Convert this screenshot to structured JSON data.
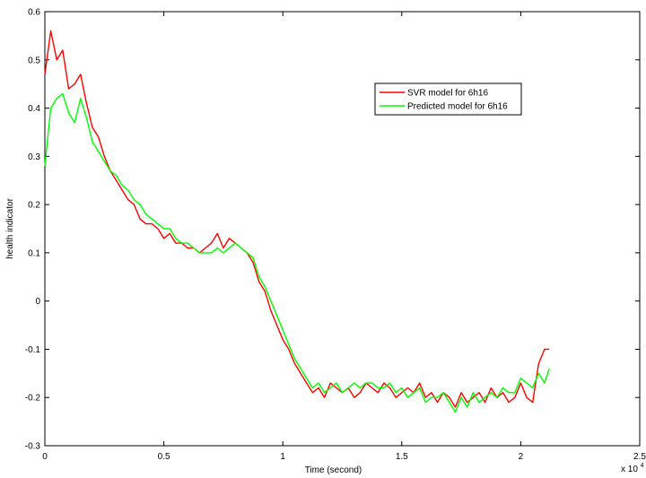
{
  "chart_data": {
    "type": "line",
    "xlabel": "Time (second)",
    "ylabel": "health indicator",
    "x_multiplier_label": "x 10",
    "x_multiplier_exp": "4",
    "xlim": [
      0,
      2.5
    ],
    "ylim": [
      -0.3,
      0.6
    ],
    "xticks": [
      0,
      0.5,
      1,
      1.5,
      2,
      2.5
    ],
    "xtick_labels": [
      "0",
      "0.5",
      "1",
      "1.5",
      "2",
      "2.5"
    ],
    "yticks": [
      -0.3,
      -0.2,
      -0.1,
      0,
      0.1,
      0.2,
      0.3,
      0.4,
      0.5,
      0.6
    ],
    "ytick_labels": [
      "-0.3",
      "-0.2",
      "-0.1",
      "0",
      "0.1",
      "0.2",
      "0.3",
      "0.4",
      "0.5",
      "0.6"
    ],
    "grid": false,
    "legend_position": "top-right",
    "series": [
      {
        "name": "SVR model for 6h16",
        "color": "#ff0000",
        "x": [
          0,
          0.025,
          0.05,
          0.075,
          0.1,
          0.125,
          0.15,
          0.175,
          0.2,
          0.225,
          0.25,
          0.275,
          0.3,
          0.325,
          0.35,
          0.375,
          0.4,
          0.425,
          0.45,
          0.475,
          0.5,
          0.525,
          0.55,
          0.575,
          0.6,
          0.625,
          0.65,
          0.675,
          0.7,
          0.725,
          0.75,
          0.775,
          0.8,
          0.825,
          0.85,
          0.875,
          0.9,
          0.925,
          0.95,
          0.975,
          1.0,
          1.025,
          1.05,
          1.075,
          1.1,
          1.125,
          1.15,
          1.175,
          1.2,
          1.225,
          1.25,
          1.275,
          1.3,
          1.325,
          1.35,
          1.375,
          1.4,
          1.425,
          1.45,
          1.475,
          1.5,
          1.525,
          1.55,
          1.575,
          1.6,
          1.625,
          1.65,
          1.675,
          1.7,
          1.725,
          1.75,
          1.775,
          1.8,
          1.825,
          1.85,
          1.875,
          1.9,
          1.925,
          1.95,
          1.975,
          2.0,
          2.025,
          2.05,
          2.075,
          2.1,
          2.12
        ],
        "values": [
          0.47,
          0.56,
          0.5,
          0.52,
          0.44,
          0.45,
          0.47,
          0.41,
          0.36,
          0.34,
          0.3,
          0.27,
          0.25,
          0.23,
          0.21,
          0.2,
          0.17,
          0.16,
          0.16,
          0.15,
          0.13,
          0.14,
          0.12,
          0.12,
          0.11,
          0.11,
          0.1,
          0.11,
          0.12,
          0.14,
          0.11,
          0.13,
          0.12,
          0.11,
          0.1,
          0.08,
          0.04,
          0.02,
          -0.02,
          -0.05,
          -0.08,
          -0.1,
          -0.13,
          -0.15,
          -0.17,
          -0.19,
          -0.18,
          -0.2,
          -0.17,
          -0.18,
          -0.19,
          -0.18,
          -0.2,
          -0.19,
          -0.17,
          -0.18,
          -0.19,
          -0.17,
          -0.18,
          -0.2,
          -0.19,
          -0.18,
          -0.19,
          -0.17,
          -0.2,
          -0.19,
          -0.21,
          -0.19,
          -0.2,
          -0.22,
          -0.19,
          -0.21,
          -0.2,
          -0.19,
          -0.21,
          -0.18,
          -0.2,
          -0.19,
          -0.21,
          -0.2,
          -0.17,
          -0.2,
          -0.21,
          -0.13,
          -0.1,
          -0.1
        ]
      },
      {
        "name": "Predicted model for 6h16",
        "color": "#00ff00",
        "x": [
          0,
          0.025,
          0.05,
          0.075,
          0.1,
          0.125,
          0.15,
          0.175,
          0.2,
          0.225,
          0.25,
          0.275,
          0.3,
          0.325,
          0.35,
          0.375,
          0.4,
          0.425,
          0.45,
          0.475,
          0.5,
          0.525,
          0.55,
          0.575,
          0.6,
          0.625,
          0.65,
          0.675,
          0.7,
          0.725,
          0.75,
          0.775,
          0.8,
          0.825,
          0.85,
          0.875,
          0.9,
          0.925,
          0.95,
          0.975,
          1.0,
          1.025,
          1.05,
          1.075,
          1.1,
          1.125,
          1.15,
          1.175,
          1.2,
          1.225,
          1.25,
          1.275,
          1.3,
          1.325,
          1.35,
          1.375,
          1.4,
          1.425,
          1.45,
          1.475,
          1.5,
          1.525,
          1.55,
          1.575,
          1.6,
          1.625,
          1.65,
          1.675,
          1.7,
          1.725,
          1.75,
          1.775,
          1.8,
          1.825,
          1.85,
          1.875,
          1.9,
          1.925,
          1.95,
          1.975,
          2.0,
          2.025,
          2.05,
          2.075,
          2.1,
          2.12
        ],
        "values": [
          0.28,
          0.4,
          0.42,
          0.43,
          0.39,
          0.37,
          0.42,
          0.38,
          0.33,
          0.31,
          0.29,
          0.27,
          0.26,
          0.24,
          0.23,
          0.21,
          0.2,
          0.18,
          0.17,
          0.16,
          0.15,
          0.15,
          0.13,
          0.12,
          0.12,
          0.11,
          0.1,
          0.1,
          0.1,
          0.11,
          0.1,
          0.11,
          0.12,
          0.11,
          0.1,
          0.09,
          0.05,
          0.03,
          0.0,
          -0.03,
          -0.06,
          -0.09,
          -0.12,
          -0.14,
          -0.16,
          -0.18,
          -0.17,
          -0.19,
          -0.18,
          -0.17,
          -0.19,
          -0.18,
          -0.17,
          -0.18,
          -0.17,
          -0.17,
          -0.18,
          -0.18,
          -0.17,
          -0.19,
          -0.18,
          -0.2,
          -0.19,
          -0.18,
          -0.21,
          -0.2,
          -0.2,
          -0.19,
          -0.21,
          -0.23,
          -0.2,
          -0.22,
          -0.19,
          -0.21,
          -0.2,
          -0.19,
          -0.2,
          -0.18,
          -0.19,
          -0.19,
          -0.16,
          -0.17,
          -0.18,
          -0.15,
          -0.17,
          -0.14
        ]
      }
    ]
  }
}
